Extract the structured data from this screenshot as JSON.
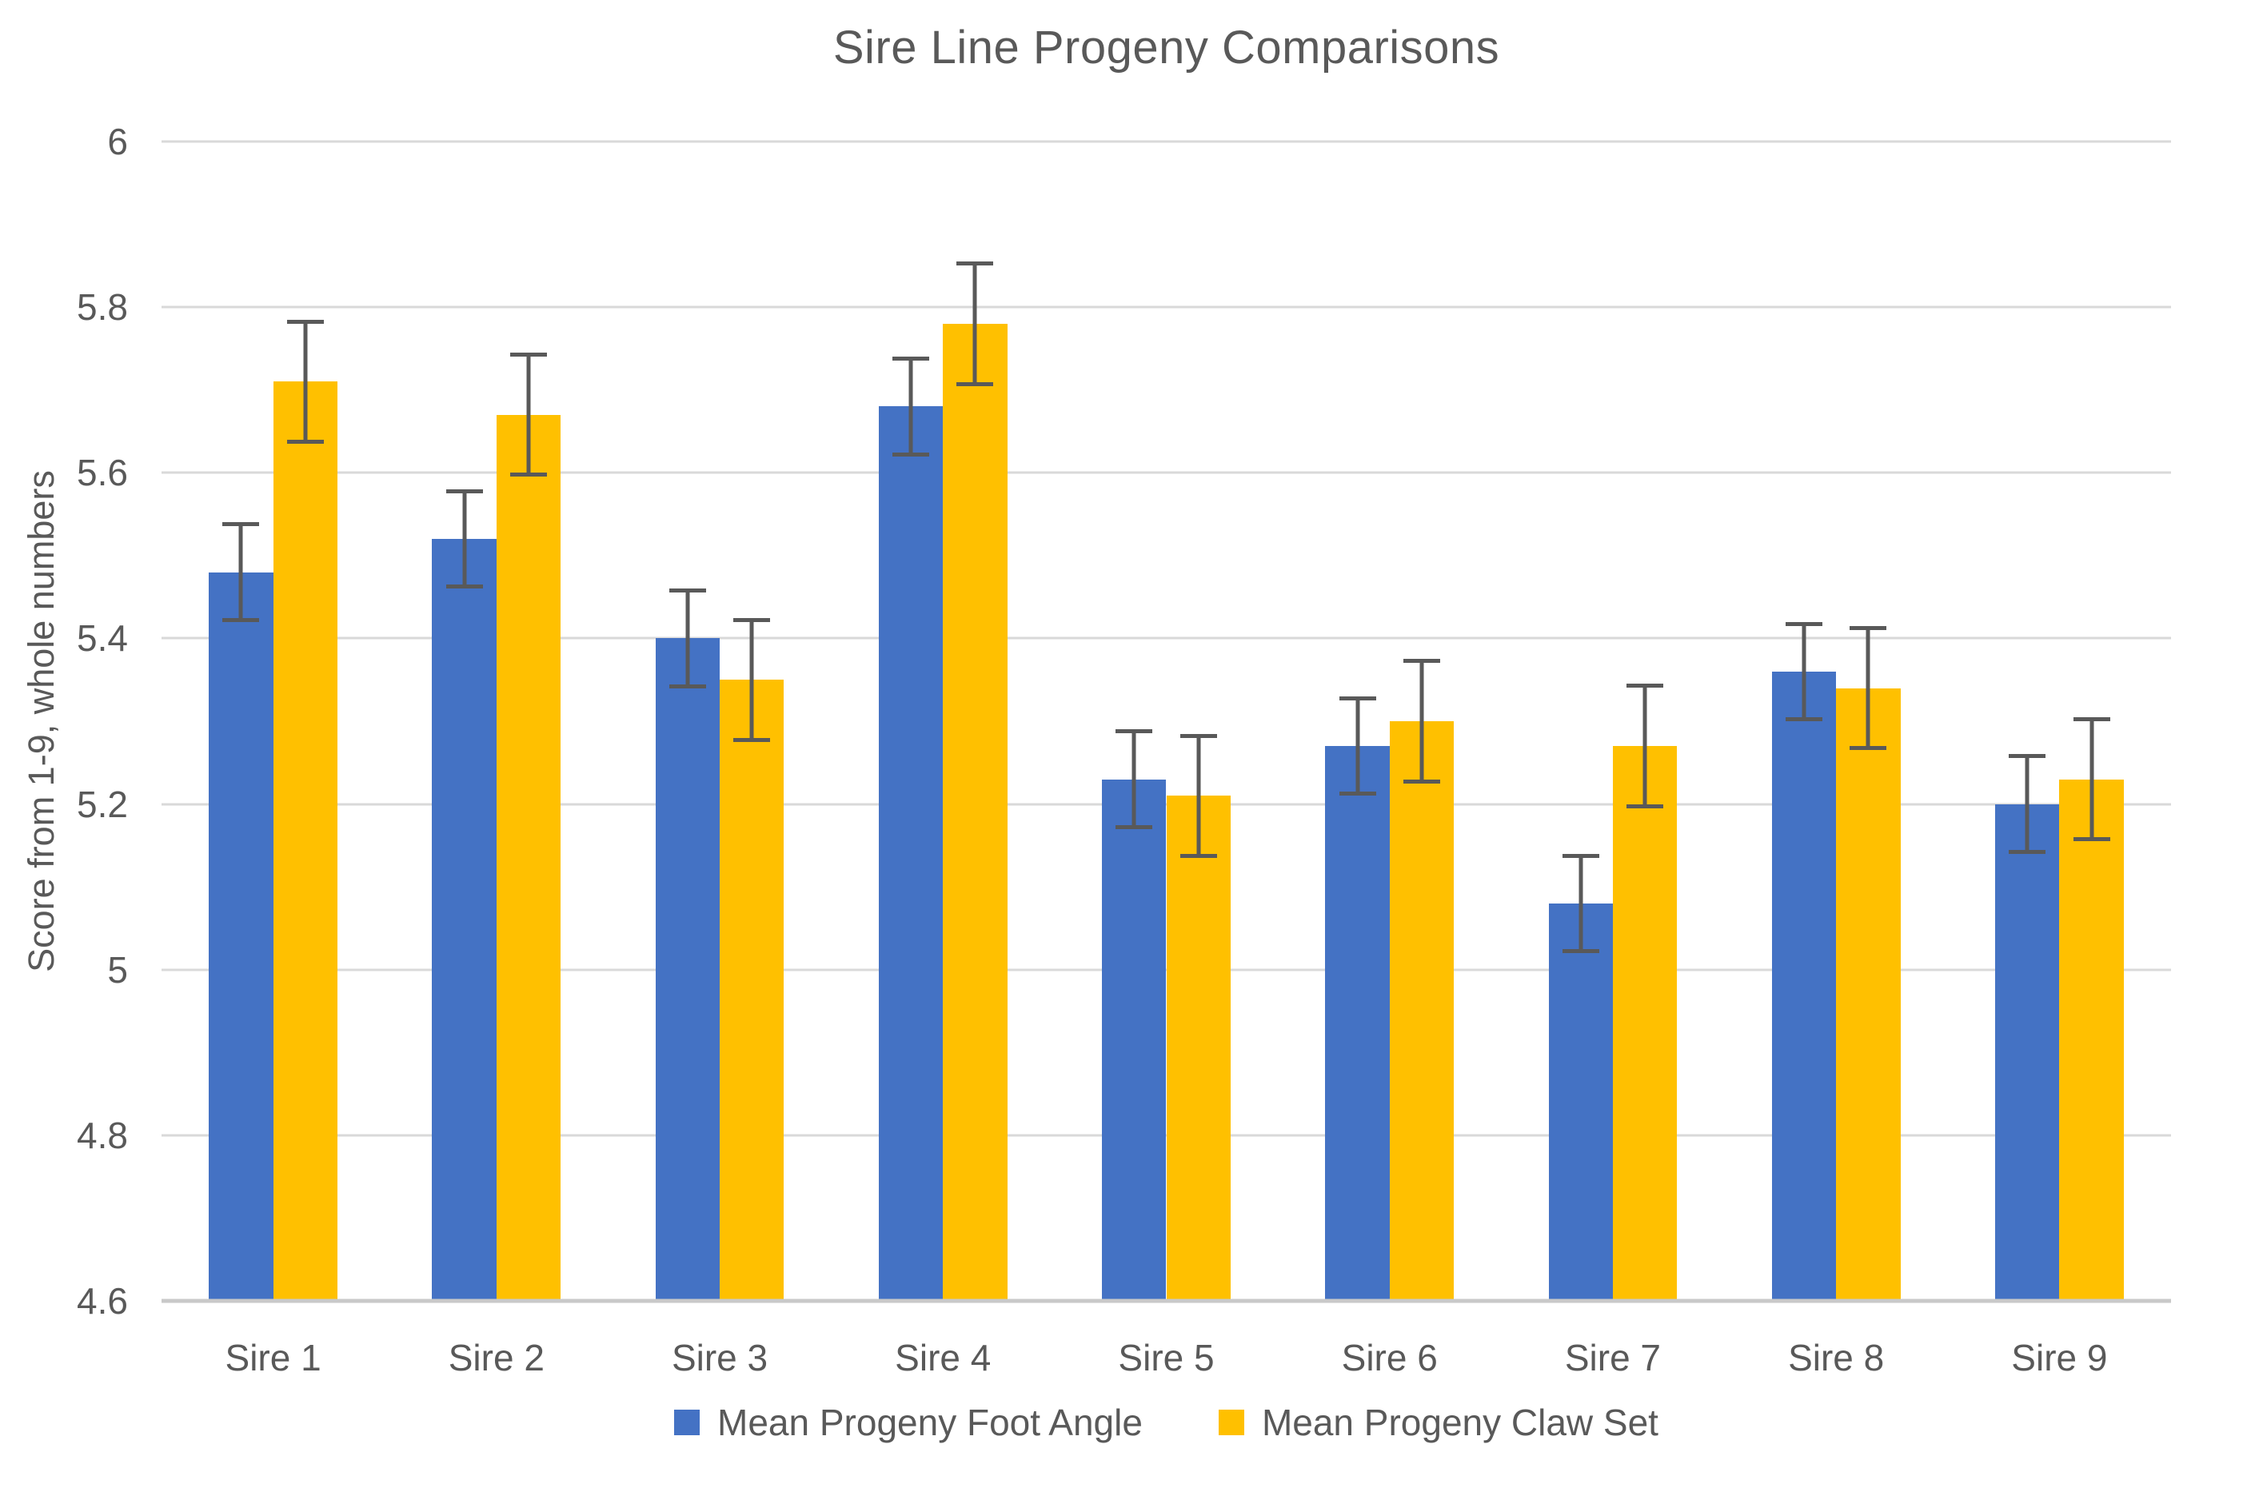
{
  "chart_data": {
    "type": "bar",
    "title": "Sire Line Progeny Comparisons",
    "xlabel": "",
    "ylabel": "Score from 1-9, whole numbers",
    "categories": [
      "Sire 1",
      "Sire 2",
      "Sire 3",
      "Sire 4",
      "Sire 5",
      "Sire 6",
      "Sire 7",
      "Sire 8",
      "Sire 9"
    ],
    "series": [
      {
        "name": "Mean Progeny Foot Angle",
        "color": "#4472C4",
        "values": [
          5.48,
          5.52,
          5.4,
          5.68,
          5.23,
          5.27,
          5.08,
          5.36,
          5.2
        ],
        "errors": [
          0.06,
          0.06,
          0.06,
          0.06,
          0.06,
          0.06,
          0.06,
          0.06,
          0.06
        ]
      },
      {
        "name": "Mean Progeny Claw Set",
        "color": "#FFC000",
        "values": [
          5.71,
          5.67,
          5.35,
          5.78,
          5.21,
          5.3,
          5.27,
          5.34,
          5.23
        ],
        "errors": [
          0.075,
          0.075,
          0.075,
          0.075,
          0.075,
          0.075,
          0.075,
          0.075,
          0.075
        ]
      }
    ],
    "ylim": [
      4.6,
      6.0
    ],
    "ytick_values": [
      6,
      5.8,
      5.6,
      5.4,
      5.2,
      5,
      4.8,
      4.6
    ],
    "ytick_labels": [
      "6",
      "5.8",
      "5.6",
      "5.4",
      "5.2",
      "5",
      "4.8",
      "4.6"
    ],
    "grid": true,
    "legend_position": "bottom",
    "error_bar_color": "#595959",
    "gridline_color": "#D9D9D9",
    "text_color": "#595959"
  }
}
